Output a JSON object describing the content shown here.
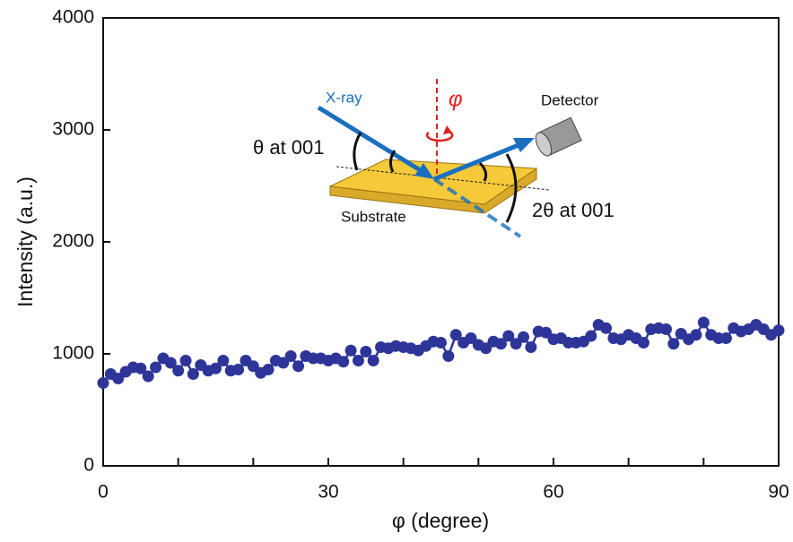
{
  "chart_data": {
    "type": "line",
    "x_label": "φ (degree)",
    "y_label": "Intensity (a.u.)",
    "x": [
      0,
      1,
      2,
      3,
      4,
      5,
      6,
      7,
      8,
      9,
      10,
      11,
      12,
      13,
      14,
      15,
      16,
      17,
      18,
      19,
      20,
      21,
      22,
      23,
      24,
      25,
      26,
      27,
      28,
      29,
      30,
      31,
      32,
      33,
      34,
      35,
      36,
      37,
      38,
      39,
      40,
      41,
      42,
      43,
      44,
      45,
      46,
      47,
      48,
      49,
      50,
      51,
      52,
      53,
      54,
      55,
      56,
      57,
      58,
      59,
      60,
      61,
      62,
      63,
      64,
      65,
      66,
      67,
      68,
      69,
      70,
      71,
      72,
      73,
      74,
      75,
      76,
      77,
      78,
      79,
      80,
      81,
      82,
      83,
      84,
      85,
      86,
      87,
      88,
      89,
      90
    ],
    "values": [
      740,
      820,
      780,
      840,
      880,
      870,
      800,
      880,
      960,
      920,
      850,
      940,
      820,
      900,
      850,
      870,
      940,
      850,
      860,
      940,
      890,
      830,
      860,
      940,
      920,
      980,
      890,
      980,
      960,
      960,
      940,
      960,
      930,
      1030,
      940,
      1020,
      940,
      1060,
      1050,
      1070,
      1060,
      1050,
      1030,
      1070,
      1110,
      1100,
      980,
      1170,
      1100,
      1140,
      1080,
      1050,
      1110,
      1090,
      1160,
      1090,
      1150,
      1060,
      1200,
      1190,
      1130,
      1140,
      1100,
      1100,
      1110,
      1160,
      1260,
      1230,
      1140,
      1130,
      1170,
      1140,
      1100,
      1220,
      1230,
      1220,
      1090,
      1180,
      1130,
      1170,
      1280,
      1170,
      1140,
      1140,
      1230,
      1200,
      1220,
      1260,
      1220,
      1170,
      1210
    ],
    "color": "#2e3599",
    "xlim": [
      0,
      90
    ],
    "xticks": [
      0,
      30,
      60,
      90
    ],
    "xminorticks": [
      10,
      20,
      40,
      50,
      70,
      80
    ],
    "ylim": [
      0,
      4000
    ],
    "yticks": [
      0,
      1000,
      2000,
      3000,
      4000
    ],
    "annotations": {
      "xray": "X-ray",
      "phi": "φ",
      "detector": "Detector",
      "theta": "θ at 001",
      "substrate": "Substrate",
      "two_theta": "2θ at 001"
    }
  }
}
